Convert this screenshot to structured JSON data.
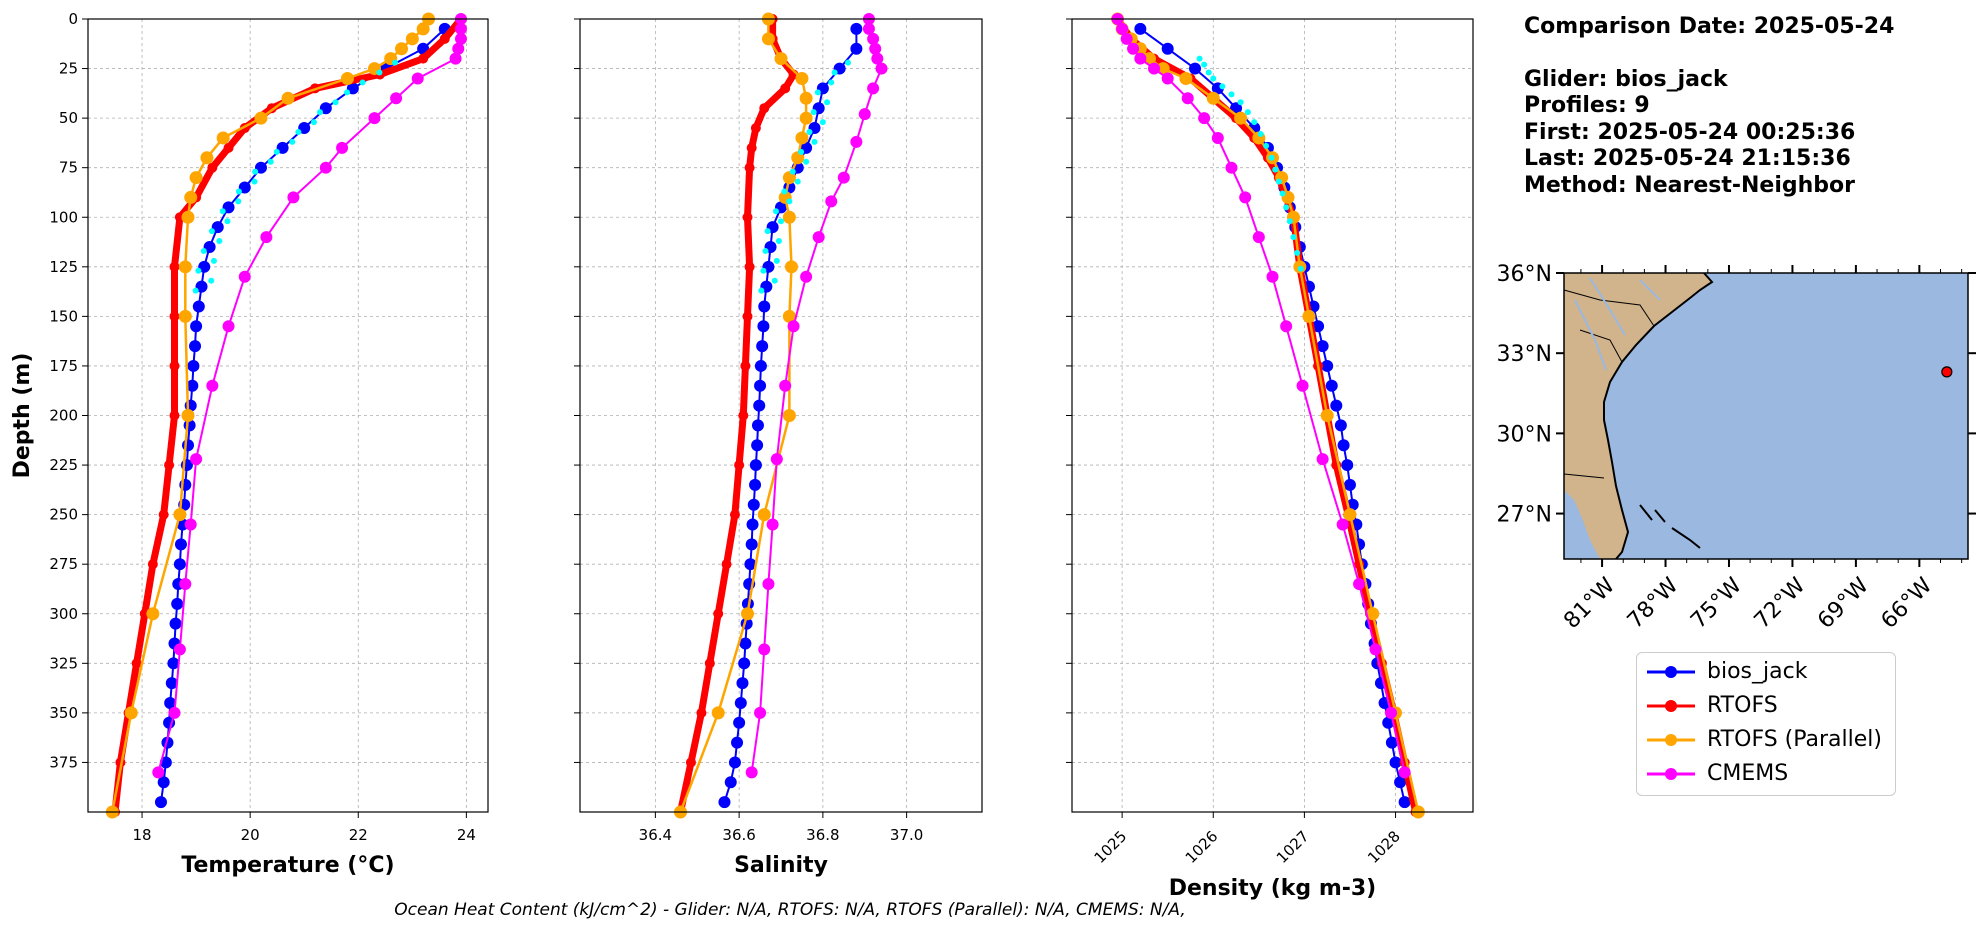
{
  "info": {
    "comparison_date": "Comparison Date: 2025-05-24",
    "glider": "Glider: bios_jack",
    "profiles": "Profiles: 9",
    "first": "First: 2025-05-24 00:25:36",
    "last": "Last: 2025-05-24 21:15:36",
    "method": "Method: Nearest-Neighbor"
  },
  "footer": "Ocean Heat Content (kJ/cm^2) - Glider: N/A,  RTOFS: N/A,  RTOFS (Parallel): N/A,  CMEMS: N/A,",
  "legend": [
    {
      "label": "bios_jack",
      "color": "#0000ff"
    },
    {
      "label": "RTOFS",
      "color": "#ff0000"
    },
    {
      "label": "RTOFS (Parallel)",
      "color": "#ffa500"
    },
    {
      "label": "CMEMS",
      "color": "#ff00ff"
    }
  ],
  "colors": {
    "glider_raw": "#00ffff",
    "land": "#d2b48c",
    "ocean": "#9ab8e0",
    "marker": "#ff0000"
  },
  "map": {
    "lat_ticks": [
      "36°N",
      "33°N",
      "30°N",
      "27°N"
    ],
    "lon_ticks": [
      "81°W",
      "78°W",
      "75°W",
      "72°W",
      "69°W",
      "66°W"
    ],
    "glider_position": {
      "lon": -64.7,
      "lat": 32.3
    }
  },
  "chart_data": [
    {
      "type": "line",
      "xlabel": "Temperature (°C)",
      "ylabel": "Depth (m)",
      "xlim": [
        17.0,
        24.4
      ],
      "ylim": [
        400,
        0
      ],
      "xticks": [
        18,
        20,
        22,
        24
      ],
      "yticks": [
        0,
        25,
        50,
        75,
        100,
        125,
        150,
        175,
        200,
        225,
        250,
        275,
        300,
        325,
        350,
        375
      ],
      "grid": true,
      "series": [
        {
          "name": "bios_jack",
          "depth": [
            5,
            15,
            25,
            35,
            45,
            55,
            65,
            75,
            85,
            95,
            105,
            115,
            125,
            135,
            145,
            155,
            165,
            175,
            185,
            195,
            205,
            215,
            225,
            235,
            245,
            255,
            265,
            275,
            285,
            295,
            305,
            315,
            325,
            335,
            345,
            355,
            365,
            375,
            385,
            395
          ],
          "values": [
            23.6,
            23.2,
            22.5,
            21.9,
            21.4,
            21.0,
            20.6,
            20.2,
            19.9,
            19.6,
            19.4,
            19.25,
            19.15,
            19.1,
            19.05,
            19.0,
            18.98,
            18.95,
            18.93,
            18.9,
            18.88,
            18.85,
            18.83,
            18.8,
            18.78,
            18.75,
            18.72,
            18.7,
            18.67,
            18.65,
            18.62,
            18.6,
            18.58,
            18.55,
            18.52,
            18.5,
            18.47,
            18.44,
            18.4,
            18.35
          ]
        },
        {
          "name": "RTOFS",
          "depth": [
            0,
            10,
            20,
            28,
            35,
            45,
            55,
            65,
            75,
            90,
            100,
            125,
            150,
            175,
            200,
            225,
            250,
            275,
            300,
            325,
            350,
            375,
            400
          ],
          "values": [
            23.9,
            23.6,
            23.2,
            22.4,
            21.2,
            20.4,
            19.9,
            19.6,
            19.3,
            19.0,
            18.7,
            18.6,
            18.6,
            18.6,
            18.6,
            18.5,
            18.4,
            18.2,
            18.05,
            17.9,
            17.75,
            17.6,
            17.5
          ]
        },
        {
          "name": "RTOFS (Parallel)",
          "depth": [
            0,
            5,
            10,
            15,
            20,
            25,
            30,
            40,
            50,
            60,
            70,
            80,
            90,
            100,
            125,
            150,
            200,
            250,
            300,
            350,
            400
          ],
          "values": [
            23.3,
            23.2,
            23.0,
            22.8,
            22.6,
            22.3,
            21.8,
            20.7,
            20.2,
            19.5,
            19.2,
            19.0,
            18.9,
            18.85,
            18.8,
            18.8,
            18.85,
            18.7,
            18.2,
            17.8,
            17.45
          ]
        },
        {
          "name": "CMEMS",
          "depth": [
            0,
            5,
            10,
            15,
            20,
            30,
            40,
            50,
            65,
            75,
            90,
            110,
            130,
            155,
            185,
            222,
            255,
            285,
            318,
            350,
            380
          ],
          "values": [
            23.9,
            23.9,
            23.9,
            23.85,
            23.8,
            23.1,
            22.7,
            22.3,
            21.7,
            21.4,
            20.8,
            20.3,
            19.9,
            19.6,
            19.3,
            19.0,
            18.9,
            18.8,
            18.7,
            18.6,
            18.3
          ]
        }
      ]
    },
    {
      "type": "line",
      "xlabel": "Salinity",
      "xlim": [
        36.22,
        37.18
      ],
      "ylim": [
        400,
        0
      ],
      "xticks": [
        36.4,
        36.6,
        36.8,
        37.0
      ],
      "yticks": [
        0,
        25,
        50,
        75,
        100,
        125,
        150,
        175,
        200,
        225,
        250,
        275,
        300,
        325,
        350,
        375
      ],
      "grid": true,
      "series": [
        {
          "name": "bios_jack",
          "depth": [
            5,
            15,
            25,
            35,
            45,
            55,
            65,
            75,
            85,
            95,
            105,
            115,
            125,
            135,
            145,
            155,
            165,
            175,
            185,
            195,
            205,
            215,
            225,
            235,
            245,
            255,
            265,
            275,
            285,
            295,
            305,
            315,
            325,
            335,
            345,
            355,
            365,
            375,
            385,
            395
          ],
          "values": [
            36.88,
            36.88,
            36.84,
            36.8,
            36.79,
            36.78,
            36.76,
            36.74,
            36.72,
            36.7,
            36.68,
            36.675,
            36.67,
            36.665,
            36.66,
            36.658,
            36.655,
            36.652,
            36.65,
            36.648,
            36.645,
            36.643,
            36.64,
            36.638,
            36.635,
            36.632,
            36.63,
            36.627,
            36.624,
            36.621,
            36.618,
            36.615,
            36.612,
            36.608,
            36.604,
            36.6,
            36.595,
            36.59,
            36.58,
            36.565
          ]
        },
        {
          "name": "RTOFS",
          "depth": [
            0,
            10,
            20,
            28,
            35,
            45,
            55,
            65,
            75,
            100,
            125,
            150,
            175,
            200,
            225,
            250,
            275,
            300,
            325,
            350,
            375,
            400
          ],
          "values": [
            36.68,
            36.68,
            36.7,
            36.73,
            36.71,
            36.66,
            36.64,
            36.63,
            36.625,
            36.62,
            36.625,
            36.62,
            36.615,
            36.61,
            36.6,
            36.59,
            36.57,
            36.55,
            36.53,
            36.51,
            36.485,
            36.46
          ]
        },
        {
          "name": "RTOFS (Parallel)",
          "depth": [
            0,
            10,
            20,
            30,
            40,
            50,
            60,
            70,
            80,
            90,
            100,
            125,
            150,
            200,
            250,
            300,
            350,
            400
          ],
          "values": [
            36.67,
            36.67,
            36.7,
            36.75,
            36.76,
            36.76,
            36.75,
            36.74,
            36.72,
            36.71,
            36.72,
            36.725,
            36.72,
            36.72,
            36.66,
            36.62,
            36.55,
            36.46
          ]
        },
        {
          "name": "CMEMS",
          "depth": [
            0,
            5,
            10,
            15,
            20,
            25,
            35,
            48,
            62,
            80,
            92,
            110,
            130,
            155,
            185,
            222,
            255,
            285,
            318,
            350,
            380
          ],
          "values": [
            36.91,
            36.91,
            36.92,
            36.925,
            36.93,
            36.94,
            36.92,
            36.9,
            36.88,
            36.85,
            36.82,
            36.79,
            36.76,
            36.73,
            36.71,
            36.69,
            36.68,
            36.67,
            36.66,
            36.65,
            36.63
          ]
        }
      ]
    },
    {
      "type": "line",
      "xlabel": "Density (kg m-3)",
      "xlim": [
        1024.45,
        1028.85
      ],
      "ylim": [
        400,
        0
      ],
      "xticks": [
        1025,
        1026,
        1027,
        1028
      ],
      "yticks": [
        0,
        25,
        50,
        75,
        100,
        125,
        150,
        175,
        200,
        225,
        250,
        275,
        300,
        325,
        350,
        375
      ],
      "grid": true,
      "series": [
        {
          "name": "bios_jack",
          "depth": [
            5,
            15,
            25,
            35,
            45,
            55,
            65,
            75,
            85,
            95,
            105,
            115,
            125,
            135,
            145,
            155,
            165,
            175,
            185,
            195,
            205,
            215,
            225,
            235,
            245,
            255,
            265,
            275,
            285,
            295,
            305,
            315,
            325,
            335,
            345,
            355,
            365,
            375,
            385,
            395
          ],
          "values": [
            1025.2,
            1025.5,
            1025.8,
            1026.05,
            1026.25,
            1026.45,
            1026.6,
            1026.7,
            1026.78,
            1026.84,
            1026.9,
            1026.95,
            1027.0,
            1027.05,
            1027.1,
            1027.15,
            1027.2,
            1027.25,
            1027.3,
            1027.35,
            1027.4,
            1027.43,
            1027.47,
            1027.5,
            1027.53,
            1027.57,
            1027.6,
            1027.63,
            1027.67,
            1027.7,
            1027.73,
            1027.77,
            1027.8,
            1027.84,
            1027.88,
            1027.92,
            1027.96,
            1028.0,
            1028.05,
            1028.1
          ]
        },
        {
          "name": "RTOFS",
          "depth": [
            0,
            10,
            20,
            30,
            40,
            50,
            60,
            70,
            80,
            100,
            125,
            150,
            175,
            200,
            225,
            250,
            275,
            300,
            325,
            350,
            375,
            400
          ],
          "values": [
            1024.95,
            1025.1,
            1025.35,
            1025.75,
            1026.0,
            1026.25,
            1026.45,
            1026.6,
            1026.72,
            1026.88,
            1026.95,
            1027.05,
            1027.15,
            1027.25,
            1027.35,
            1027.48,
            1027.6,
            1027.72,
            1027.85,
            1027.98,
            1028.1,
            1028.22
          ]
        },
        {
          "name": "RTOFS (Parallel)",
          "depth": [
            0,
            5,
            10,
            15,
            20,
            25,
            30,
            40,
            50,
            60,
            70,
            80,
            90,
            100,
            125,
            150,
            200,
            250,
            300,
            350,
            400
          ],
          "values": [
            1024.95,
            1025.0,
            1025.1,
            1025.2,
            1025.3,
            1025.45,
            1025.7,
            1026.0,
            1026.3,
            1026.5,
            1026.65,
            1026.75,
            1026.82,
            1026.88,
            1026.95,
            1027.05,
            1027.25,
            1027.5,
            1027.75,
            1028.0,
            1028.25
          ]
        },
        {
          "name": "CMEMS",
          "depth": [
            0,
            5,
            10,
            15,
            20,
            25,
            30,
            40,
            50,
            60,
            75,
            90,
            110,
            130,
            155,
            185,
            222,
            255,
            285,
            318,
            350,
            380
          ],
          "values": [
            1024.95,
            1025.0,
            1025.05,
            1025.12,
            1025.2,
            1025.35,
            1025.5,
            1025.72,
            1025.9,
            1026.05,
            1026.2,
            1026.35,
            1026.5,
            1026.65,
            1026.8,
            1026.98,
            1027.2,
            1027.42,
            1027.6,
            1027.78,
            1027.95,
            1028.1
          ]
        },
        {
          "name": "glider_raw",
          "depth": [
            20,
            23,
            27,
            30,
            34,
            38,
            42,
            47,
            52,
            58,
            64,
            70,
            76,
            82,
            88,
            95,
            102,
            110,
            118,
            126
          ],
          "values": [
            1025.85,
            1025.9,
            1025.95,
            1026.0,
            1026.1,
            1026.2,
            1026.3,
            1026.38,
            1026.45,
            1026.52,
            1026.58,
            1026.64,
            1026.68,
            1026.72,
            1026.76,
            1026.8,
            1026.84,
            1026.88,
            1026.92,
            1026.96
          ]
        }
      ]
    }
  ]
}
